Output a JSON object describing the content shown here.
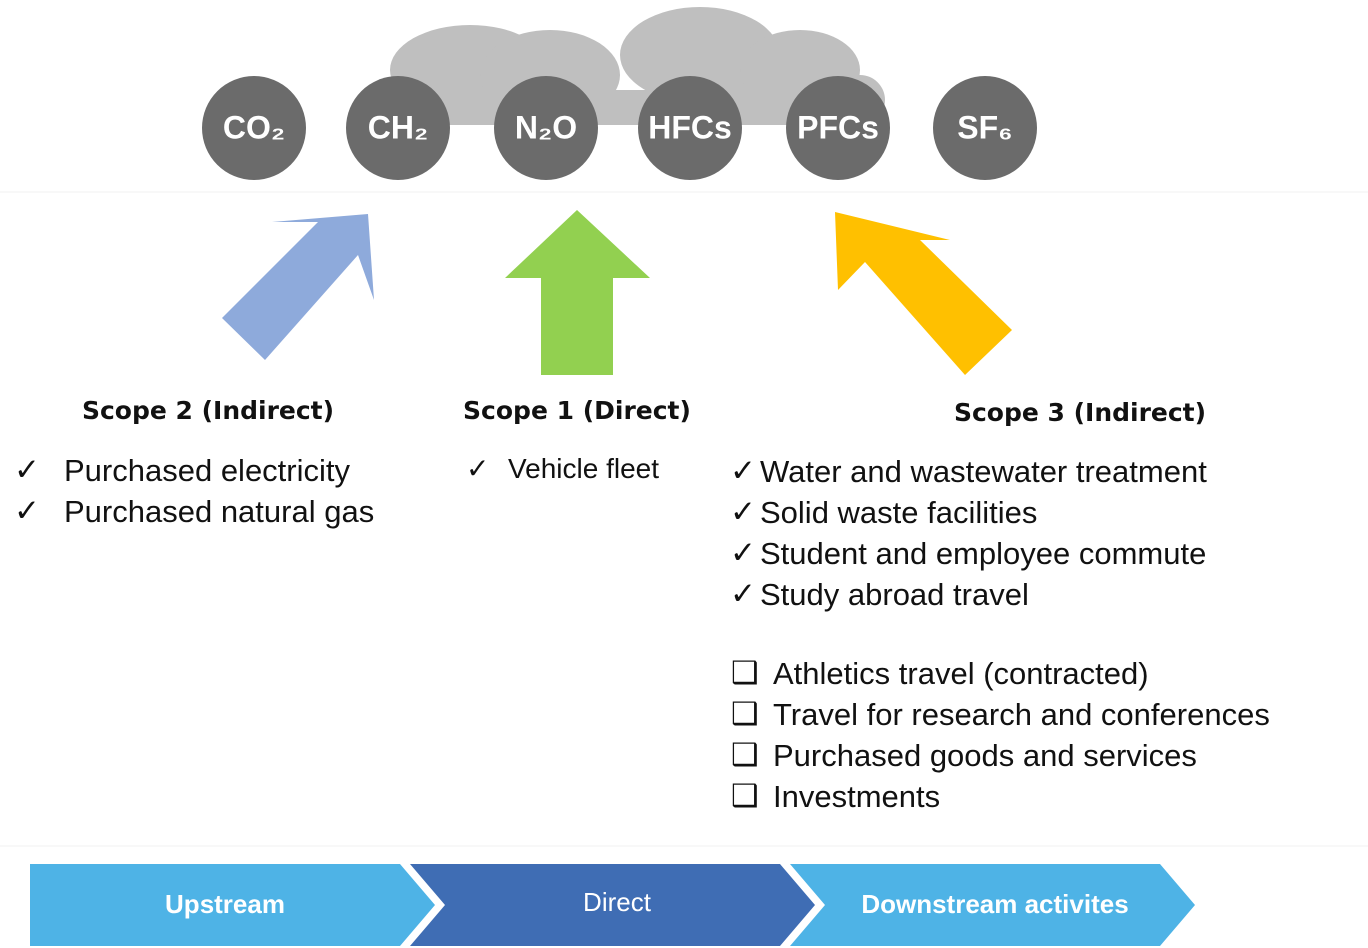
{
  "gases": [
    "CO₂",
    "CH₂",
    "N₂O",
    "HFCs",
    "PFCs",
    "SF₆"
  ],
  "scopes": [
    {
      "title": "Scope 2 (Indirect)",
      "checked": [
        "Purchased electricity",
        "Purchased natural gas"
      ]
    },
    {
      "title": "Scope 1 (Direct)",
      "checked": [
        "Vehicle fleet"
      ]
    },
    {
      "title": "Scope 3 (Indirect)",
      "checked": [
        "Water and wastewater treatment",
        "Solid waste facilities",
        "Student and employee commute",
        "Study abroad travel"
      ],
      "pending": [
        "Athletics travel (contracted)",
        "Travel for research and conferences",
        "Purchased goods and services",
        "Investments"
      ]
    }
  ],
  "flow": [
    "Upstream",
    "Direct",
    "Downstream activites"
  ]
}
